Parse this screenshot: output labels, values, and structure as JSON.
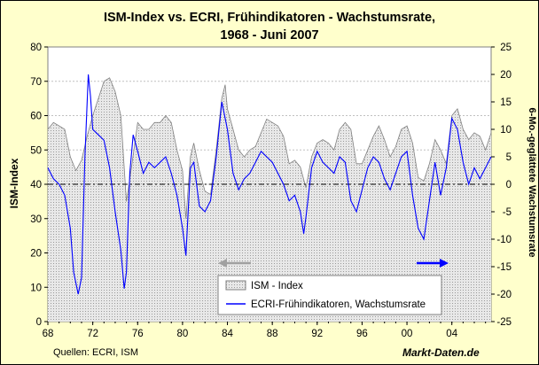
{
  "title_line1": "ISM-Index vs. ECRI, Frühindikatoren - Wachstumsrate,",
  "title_line2": "1968 -  Juni 2007",
  "source": "Quellen: ECRI, ISM",
  "brand": "Markt-Daten.de",
  "chart_data": {
    "type": "area",
    "title": "ISM-Index vs. ECRI, Frühindikatoren - Wachstumsrate, 1968 -  Juni 2007",
    "x_range": [
      1968,
      2007.5
    ],
    "x_ticks": [
      "68",
      "72",
      "76",
      "80",
      "84",
      "88",
      "92",
      "96",
      "00",
      "04"
    ],
    "y_left": {
      "label": "ISM-Index",
      "range": [
        0,
        80
      ],
      "ticks": [
        0,
        10,
        20,
        30,
        40,
        50,
        60,
        70,
        80
      ]
    },
    "y_right": {
      "label": "6-Mo.-geglättete Wachstumsrate",
      "range": [
        -25,
        25
      ],
      "ticks": [
        -25,
        -20,
        -15,
        -10,
        -5,
        0,
        5,
        10,
        15,
        20,
        25
      ]
    },
    "reference_line": {
      "axis": "right",
      "value": 0,
      "style": "dash-dot"
    },
    "legend": [
      "ISM - Index",
      "ECRI-Frühindikatoren, Wachstumsrate"
    ],
    "series": [
      {
        "name": "ISM - Index",
        "axis": "left",
        "style": "grey dotted area",
        "points": [
          [
            1968.0,
            56
          ],
          [
            1968.5,
            58
          ],
          [
            1969.0,
            57
          ],
          [
            1969.5,
            56
          ],
          [
            1970.0,
            48
          ],
          [
            1970.5,
            44
          ],
          [
            1971.0,
            47
          ],
          [
            1971.5,
            54
          ],
          [
            1972.0,
            60
          ],
          [
            1972.5,
            65
          ],
          [
            1973.0,
            70
          ],
          [
            1973.5,
            71
          ],
          [
            1974.0,
            67
          ],
          [
            1974.5,
            60
          ],
          [
            1975.0,
            35
          ],
          [
            1975.5,
            46
          ],
          [
            1976.0,
            58
          ],
          [
            1976.5,
            56
          ],
          [
            1977.0,
            56
          ],
          [
            1977.5,
            58
          ],
          [
            1978.0,
            58
          ],
          [
            1978.5,
            60
          ],
          [
            1979.0,
            58
          ],
          [
            1979.5,
            50
          ],
          [
            1980.0,
            44
          ],
          [
            1980.3,
            30
          ],
          [
            1980.7,
            48
          ],
          [
            1981.0,
            52
          ],
          [
            1981.5,
            44
          ],
          [
            1982.0,
            38
          ],
          [
            1982.5,
            37
          ],
          [
            1983.0,
            50
          ],
          [
            1983.5,
            65
          ],
          [
            1983.8,
            69
          ],
          [
            1984.0,
            62
          ],
          [
            1984.5,
            56
          ],
          [
            1985.0,
            50
          ],
          [
            1985.5,
            48
          ],
          [
            1986.0,
            50
          ],
          [
            1986.5,
            51
          ],
          [
            1987.0,
            55
          ],
          [
            1987.5,
            59
          ],
          [
            1988.0,
            58
          ],
          [
            1988.5,
            57
          ],
          [
            1989.0,
            54
          ],
          [
            1989.5,
            46
          ],
          [
            1990.0,
            47
          ],
          [
            1990.5,
            45
          ],
          [
            1991.0,
            39
          ],
          [
            1991.5,
            48
          ],
          [
            1992.0,
            52
          ],
          [
            1992.5,
            53
          ],
          [
            1993.0,
            52
          ],
          [
            1993.5,
            50
          ],
          [
            1994.0,
            56
          ],
          [
            1994.5,
            58
          ],
          [
            1995.0,
            56
          ],
          [
            1995.5,
            46
          ],
          [
            1996.0,
            46
          ],
          [
            1996.5,
            50
          ],
          [
            1997.0,
            54
          ],
          [
            1997.5,
            57
          ],
          [
            1998.0,
            53
          ],
          [
            1998.5,
            48
          ],
          [
            1999.0,
            51
          ],
          [
            1999.5,
            56
          ],
          [
            2000.0,
            57
          ],
          [
            2000.5,
            52
          ],
          [
            2001.0,
            42
          ],
          [
            2001.5,
            41
          ],
          [
            2002.0,
            46
          ],
          [
            2002.5,
            53
          ],
          [
            2003.0,
            50
          ],
          [
            2003.5,
            46
          ],
          [
            2004.0,
            60
          ],
          [
            2004.5,
            62
          ],
          [
            2005.0,
            56
          ],
          [
            2005.5,
            53
          ],
          [
            2006.0,
            55
          ],
          [
            2006.5,
            54
          ],
          [
            2007.0,
            50
          ],
          [
            2007.5,
            55
          ]
        ]
      },
      {
        "name": "ECRI-Frühindikatoren, Wachstumsrate",
        "axis": "right",
        "style": "blue line",
        "points": [
          [
            1968.0,
            3
          ],
          [
            1968.5,
            1
          ],
          [
            1969.0,
            0
          ],
          [
            1969.5,
            -2
          ],
          [
            1970.0,
            -8
          ],
          [
            1970.3,
            -16
          ],
          [
            1970.7,
            -20
          ],
          [
            1971.0,
            -17
          ],
          [
            1971.3,
            5
          ],
          [
            1971.6,
            20
          ],
          [
            1971.8,
            16
          ],
          [
            1972.0,
            10
          ],
          [
            1972.5,
            9
          ],
          [
            1973.0,
            8
          ],
          [
            1973.5,
            3
          ],
          [
            1974.0,
            -5
          ],
          [
            1974.5,
            -12
          ],
          [
            1974.8,
            -19
          ],
          [
            1975.0,
            -16
          ],
          [
            1975.3,
            2
          ],
          [
            1975.6,
            9
          ],
          [
            1976.0,
            6
          ],
          [
            1976.5,
            2
          ],
          [
            1977.0,
            4
          ],
          [
            1977.5,
            3
          ],
          [
            1978.0,
            4
          ],
          [
            1978.5,
            5
          ],
          [
            1979.0,
            2
          ],
          [
            1979.5,
            -2
          ],
          [
            1980.0,
            -8
          ],
          [
            1980.3,
            -13
          ],
          [
            1980.7,
            3
          ],
          [
            1981.0,
            4
          ],
          [
            1981.5,
            -4
          ],
          [
            1982.0,
            -5
          ],
          [
            1982.5,
            -3
          ],
          [
            1983.0,
            5
          ],
          [
            1983.5,
            15
          ],
          [
            1984.0,
            10
          ],
          [
            1984.5,
            2
          ],
          [
            1985.0,
            -1
          ],
          [
            1985.5,
            1
          ],
          [
            1986.0,
            2
          ],
          [
            1986.5,
            4
          ],
          [
            1987.0,
            6
          ],
          [
            1987.5,
            5
          ],
          [
            1988.0,
            4
          ],
          [
            1988.5,
            2
          ],
          [
            1989.0,
            0
          ],
          [
            1989.5,
            -3
          ],
          [
            1990.0,
            -2
          ],
          [
            1990.5,
            -5
          ],
          [
            1990.8,
            -9
          ],
          [
            1991.0,
            -6
          ],
          [
            1991.5,
            3
          ],
          [
            1992.0,
            6
          ],
          [
            1992.5,
            4
          ],
          [
            1993.0,
            3
          ],
          [
            1993.5,
            2
          ],
          [
            1994.0,
            5
          ],
          [
            1994.5,
            4
          ],
          [
            1995.0,
            -3
          ],
          [
            1995.5,
            -5
          ],
          [
            1996.0,
            -1
          ],
          [
            1996.5,
            3
          ],
          [
            1997.0,
            5
          ],
          [
            1997.5,
            4
          ],
          [
            1998.0,
            1
          ],
          [
            1998.5,
            -1
          ],
          [
            1999.0,
            2
          ],
          [
            1999.5,
            5
          ],
          [
            2000.0,
            6
          ],
          [
            2000.5,
            -2
          ],
          [
            2001.0,
            -8
          ],
          [
            2001.5,
            -10
          ],
          [
            2002.0,
            -3
          ],
          [
            2002.5,
            4
          ],
          [
            2003.0,
            -2
          ],
          [
            2003.5,
            3
          ],
          [
            2004.0,
            12
          ],
          [
            2004.5,
            10
          ],
          [
            2005.0,
            4
          ],
          [
            2005.5,
            0
          ],
          [
            2006.0,
            3
          ],
          [
            2006.5,
            1
          ],
          [
            2007.0,
            3
          ],
          [
            2007.5,
            5
          ]
        ]
      }
    ]
  },
  "colors": {
    "background": "#ffffcc",
    "ism_fill": "#e4e4e4",
    "ism_line": "#808080",
    "ecri": "#0000ff",
    "arrow_left": "#a0a0a0",
    "arrow_right": "#0000ff"
  }
}
